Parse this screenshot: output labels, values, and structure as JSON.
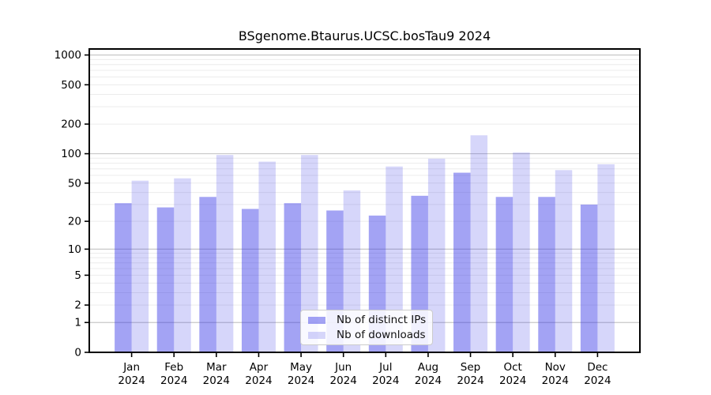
{
  "chart_data": {
    "type": "bar",
    "title": "BSgenome.Btaurus.UCSC.bosTau9 2024",
    "categories": [
      "Jan 2024",
      "Feb 2024",
      "Mar 2024",
      "Apr 2024",
      "May 2024",
      "Jun 2024",
      "Jul 2024",
      "Aug 2024",
      "Sep 2024",
      "Oct 2024",
      "Nov 2024",
      "Dec 2024"
    ],
    "series": [
      {
        "name": "Nb of distinct IPs",
        "values": [
          31,
          28,
          36,
          27,
          31,
          26,
          23,
          37,
          64,
          36,
          36,
          30
        ]
      },
      {
        "name": "Nb of downloads",
        "values": [
          53,
          56,
          97,
          83,
          97,
          42,
          74,
          89,
          154,
          103,
          68,
          78
        ]
      }
    ],
    "xlabel": "",
    "ylabel": "",
    "yscale": "log1p",
    "yticks": [
      1000,
      500,
      200,
      100,
      50,
      20,
      10,
      5,
      2,
      1,
      0
    ],
    "ylim": [
      0,
      1150
    ],
    "grid": true,
    "legend_position": "lower center"
  },
  "colors": {
    "distinct_ips_bar": "rgba(51,51,230,0.45)",
    "downloads_bar": "rgba(51,51,230,0.20)",
    "major_grid": "#c8c8c8",
    "minor_grid": "#ececec",
    "axis": "#000000",
    "tick_label": "#000000",
    "legend_border": "#cccccc",
    "legend_bg": "rgba(255,255,255,0.85)"
  }
}
